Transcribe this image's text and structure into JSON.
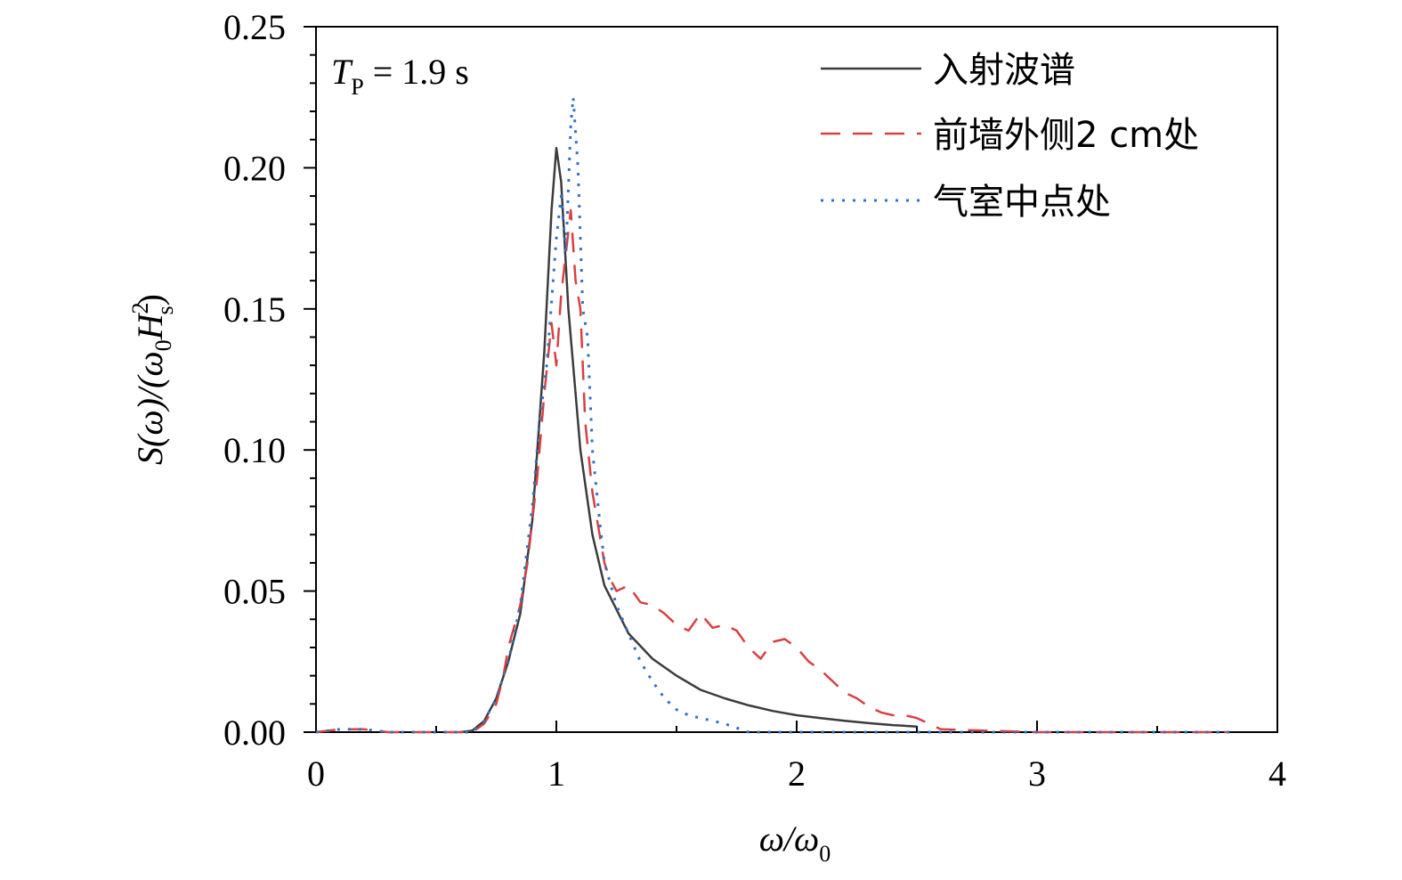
{
  "chart_data": {
    "type": "line",
    "title": "",
    "xlabel": {
      "base": "ω/ω",
      "sub": "0"
    },
    "ylabel": {
      "p1": "S(ω)/(ω",
      "sub0": "0",
      "p2": "H",
      "sup": "2",
      "sub": "s",
      "p3": ")"
    },
    "annotation": {
      "base": "T",
      "sub": "P",
      "rest": " = 1.9 s"
    },
    "xlim": [
      0,
      4
    ],
    "ylim": [
      0,
      0.25
    ],
    "x_ticks": [
      0,
      1,
      2,
      3,
      4
    ],
    "x_tick_labels": [
      "0",
      "1",
      "2",
      "3",
      "4"
    ],
    "x_minor_step": 0.5,
    "y_ticks": [
      0,
      0.05,
      0.1,
      0.15,
      0.2,
      0.25
    ],
    "y_tick_labels": [
      "0.00",
      "0.05",
      "0.10",
      "0.15",
      "0.20",
      "0.25"
    ],
    "y_minor_step": 0.01,
    "grid": false,
    "legend_position": "top-right",
    "series": [
      {
        "name": "入射波谱",
        "color": "#3c3c3c",
        "style": "solid",
        "points": [
          [
            0.6,
            0.0
          ],
          [
            0.65,
            0.0005
          ],
          [
            0.7,
            0.004
          ],
          [
            0.75,
            0.012
          ],
          [
            0.8,
            0.025
          ],
          [
            0.85,
            0.042
          ],
          [
            0.9,
            0.075
          ],
          [
            0.95,
            0.135
          ],
          [
            0.98,
            0.185
          ],
          [
            1.0,
            0.207
          ],
          [
            1.02,
            0.195
          ],
          [
            1.05,
            0.15
          ],
          [
            1.1,
            0.1
          ],
          [
            1.15,
            0.07
          ],
          [
            1.2,
            0.052
          ],
          [
            1.3,
            0.035
          ],
          [
            1.4,
            0.026
          ],
          [
            1.5,
            0.02
          ],
          [
            1.6,
            0.015
          ],
          [
            1.7,
            0.012
          ],
          [
            1.8,
            0.0095
          ],
          [
            1.9,
            0.0075
          ],
          [
            2.0,
            0.006
          ],
          [
            2.1,
            0.005
          ],
          [
            2.2,
            0.004
          ],
          [
            2.3,
            0.0032
          ],
          [
            2.4,
            0.0025
          ],
          [
            2.5,
            0.002
          ]
        ]
      },
      {
        "name": "前墙外侧2 cm处",
        "color": "#d94040",
        "style": "dashed",
        "points": [
          [
            0.0,
            0.0
          ],
          [
            0.1,
            0.001
          ],
          [
            0.2,
            0.001
          ],
          [
            0.3,
            0.0
          ],
          [
            0.5,
            0.0
          ],
          [
            0.6,
            0.0
          ],
          [
            0.65,
            0.0
          ],
          [
            0.7,
            0.003
          ],
          [
            0.75,
            0.01
          ],
          [
            0.78,
            0.02
          ],
          [
            0.8,
            0.03
          ],
          [
            0.85,
            0.045
          ],
          [
            0.88,
            0.06
          ],
          [
            0.92,
            0.09
          ],
          [
            0.95,
            0.12
          ],
          [
            0.98,
            0.145
          ],
          [
            1.0,
            0.13
          ],
          [
            1.02,
            0.155
          ],
          [
            1.04,
            0.17
          ],
          [
            1.06,
            0.185
          ],
          [
            1.08,
            0.16
          ],
          [
            1.1,
            0.15
          ],
          [
            1.12,
            0.11
          ],
          [
            1.15,
            0.085
          ],
          [
            1.18,
            0.07
          ],
          [
            1.2,
            0.06
          ],
          [
            1.22,
            0.055
          ],
          [
            1.25,
            0.05
          ],
          [
            1.3,
            0.052
          ],
          [
            1.35,
            0.046
          ],
          [
            1.4,
            0.045
          ],
          [
            1.45,
            0.042
          ],
          [
            1.5,
            0.038
          ],
          [
            1.55,
            0.036
          ],
          [
            1.6,
            0.042
          ],
          [
            1.65,
            0.037
          ],
          [
            1.7,
            0.038
          ],
          [
            1.75,
            0.036
          ],
          [
            1.8,
            0.03
          ],
          [
            1.85,
            0.026
          ],
          [
            1.9,
            0.032
          ],
          [
            1.95,
            0.033
          ],
          [
            2.0,
            0.03
          ],
          [
            2.05,
            0.025
          ],
          [
            2.1,
            0.022
          ],
          [
            2.15,
            0.018
          ],
          [
            2.2,
            0.014
          ],
          [
            2.25,
            0.012
          ],
          [
            2.3,
            0.009
          ],
          [
            2.35,
            0.007
          ],
          [
            2.4,
            0.006
          ],
          [
            2.45,
            0.006
          ],
          [
            2.5,
            0.005
          ],
          [
            2.6,
            0.001
          ],
          [
            3.0,
            0.0
          ],
          [
            3.5,
            0.0
          ],
          [
            3.8,
            0.0
          ]
        ]
      },
      {
        "name": "气室中点处",
        "color": "#2f73c8",
        "style": "dotted",
        "points": [
          [
            0.0,
            0.0
          ],
          [
            0.1,
            0.001
          ],
          [
            0.2,
            0.001
          ],
          [
            0.3,
            0.0
          ],
          [
            0.5,
            0.0
          ],
          [
            0.6,
            0.0
          ],
          [
            0.65,
            0.0
          ],
          [
            0.7,
            0.004
          ],
          [
            0.75,
            0.012
          ],
          [
            0.8,
            0.025
          ],
          [
            0.85,
            0.045
          ],
          [
            0.9,
            0.08
          ],
          [
            0.93,
            0.11
          ],
          [
            0.96,
            0.13
          ],
          [
            1.0,
            0.175
          ],
          [
            1.02,
            0.19
          ],
          [
            1.04,
            0.17
          ],
          [
            1.06,
            0.215
          ],
          [
            1.07,
            0.225
          ],
          [
            1.09,
            0.2
          ],
          [
            1.11,
            0.15
          ],
          [
            1.13,
            0.14
          ],
          [
            1.15,
            0.1
          ],
          [
            1.18,
            0.075
          ],
          [
            1.2,
            0.06
          ],
          [
            1.25,
            0.045
          ],
          [
            1.3,
            0.035
          ],
          [
            1.35,
            0.025
          ],
          [
            1.4,
            0.018
          ],
          [
            1.45,
            0.012
          ],
          [
            1.5,
            0.008
          ],
          [
            1.55,
            0.006
          ],
          [
            1.6,
            0.005
          ],
          [
            1.65,
            0.004
          ],
          [
            1.7,
            0.003
          ],
          [
            1.8,
            0.0
          ],
          [
            2.0,
            0.0
          ],
          [
            2.5,
            0.0
          ],
          [
            3.0,
            0.0
          ],
          [
            3.5,
            0.0
          ],
          [
            3.8,
            0.0
          ]
        ]
      }
    ]
  }
}
